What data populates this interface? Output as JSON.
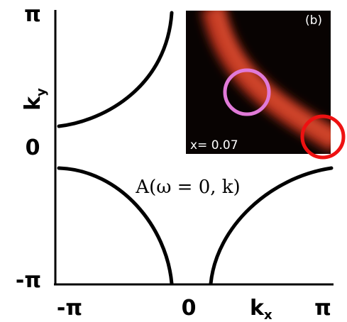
{
  "axes": {
    "y": {
      "ticks": [
        "π",
        "0",
        "-π"
      ],
      "label": {
        "main": "k",
        "sub": "y"
      }
    },
    "x": {
      "ticks": [
        "-π",
        "0",
        "π"
      ],
      "label": {
        "main": "k",
        "sub": "x"
      }
    }
  },
  "annotation": "A(ω = 0, k)",
  "inset": {
    "panel": "(b)",
    "doping": "x= 0.07"
  }
}
